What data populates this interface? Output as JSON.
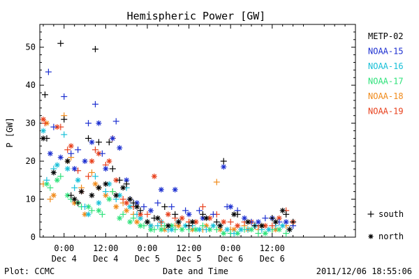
{
  "chart_data": {
    "type": "scatter",
    "title": "Hemispheric Power [GW]",
    "xlabel": "Date and Time",
    "ylabel": "P [GW]",
    "ylim": [
      0,
      56
    ],
    "xlim": [
      -7,
      84
    ],
    "x_unit": "hours from 2011-12-04 00:00 UT",
    "yticks": [
      0,
      10,
      20,
      30,
      40,
      50
    ],
    "xticks": [
      {
        "x": 0,
        "line1": "0:00",
        "line2": "Dec 4"
      },
      {
        "x": 12,
        "line1": "12:00",
        "line2": "Dec 4"
      },
      {
        "x": 24,
        "line1": "0:00",
        "line2": "Dec 5"
      },
      {
        "x": 36,
        "line1": "12:00",
        "line2": "Dec 5"
      },
      {
        "x": 48,
        "line1": "0:00",
        "line2": "Dec 6"
      },
      {
        "x": 60,
        "line1": "12:00",
        "line2": "Dec 6"
      }
    ],
    "legend_position": "right",
    "series": [
      {
        "name": "METP-02",
        "color": "#000000",
        "south": [
          [
            -5.5,
            37.5
          ],
          [
            -5,
            26
          ],
          [
            -1,
            51
          ],
          [
            0,
            31
          ],
          [
            2,
            11
          ],
          [
            4,
            9
          ],
          [
            7,
            26
          ],
          [
            9,
            49.5
          ],
          [
            10,
            25
          ],
          [
            13,
            25
          ],
          [
            14,
            18
          ],
          [
            16,
            15
          ],
          [
            18,
            14
          ],
          [
            20,
            9
          ],
          [
            22,
            7
          ],
          [
            26,
            5
          ],
          [
            29,
            8
          ],
          [
            32,
            6
          ],
          [
            36,
            3
          ],
          [
            40,
            6
          ],
          [
            44,
            4
          ],
          [
            46,
            20
          ],
          [
            50,
            6
          ],
          [
            55,
            3
          ],
          [
            60,
            5
          ],
          [
            64,
            6
          ],
          [
            66,
            4
          ]
        ],
        "north": [
          [
            -6,
            26
          ],
          [
            -3,
            17
          ],
          [
            1,
            20
          ],
          [
            3,
            10
          ],
          [
            5,
            12
          ],
          [
            8,
            11
          ],
          [
            10,
            13
          ],
          [
            12,
            14
          ],
          [
            15,
            11
          ],
          [
            17,
            13
          ],
          [
            19,
            10
          ],
          [
            21,
            8
          ],
          [
            24,
            4
          ],
          [
            27,
            5
          ],
          [
            30,
            3
          ],
          [
            33,
            4
          ],
          [
            37,
            4
          ],
          [
            41,
            5
          ],
          [
            45,
            3
          ],
          [
            49,
            6
          ],
          [
            53,
            4
          ],
          [
            57,
            3
          ],
          [
            61,
            4
          ],
          [
            63,
            7
          ],
          [
            65,
            2
          ]
        ]
      },
      {
        "name": "NOAA-15",
        "color": "#1c2fd0",
        "south": [
          [
            -4.5,
            43.5
          ],
          [
            -3,
            29
          ],
          [
            0,
            37
          ],
          [
            2,
            22
          ],
          [
            4,
            23
          ],
          [
            7,
            30
          ],
          [
            9,
            35
          ],
          [
            11,
            22
          ],
          [
            15,
            30.5
          ],
          [
            19,
            10
          ],
          [
            23,
            8
          ],
          [
            27,
            9
          ],
          [
            31,
            8
          ],
          [
            35,
            7
          ],
          [
            39,
            7
          ],
          [
            43,
            6
          ],
          [
            47,
            8
          ],
          [
            50,
            7
          ],
          [
            54,
            4
          ],
          [
            58,
            5
          ],
          [
            62,
            4
          ],
          [
            66,
            3
          ]
        ],
        "north": [
          [
            -4,
            22
          ],
          [
            -1,
            21
          ],
          [
            3,
            18
          ],
          [
            6,
            20
          ],
          [
            8,
            25
          ],
          [
            10,
            30
          ],
          [
            12,
            18
          ],
          [
            14,
            26
          ],
          [
            16,
            23.5
          ],
          [
            18,
            15
          ],
          [
            21,
            9
          ],
          [
            25,
            7
          ],
          [
            28,
            12.5
          ],
          [
            32,
            12.5
          ],
          [
            36,
            6
          ],
          [
            40,
            5
          ],
          [
            46,
            18.5
          ],
          [
            48,
            8
          ],
          [
            52,
            5
          ],
          [
            56,
            4
          ],
          [
            60,
            5
          ],
          [
            64,
            4
          ]
        ]
      },
      {
        "name": "NOAA-16",
        "color": "#18c0d8",
        "south": [
          [
            -5,
            15
          ],
          [
            -3,
            18
          ],
          [
            0,
            27
          ],
          [
            3,
            13
          ],
          [
            6,
            8
          ],
          [
            9,
            16
          ],
          [
            12,
            12
          ],
          [
            15,
            10
          ],
          [
            18,
            13
          ],
          [
            21,
            6
          ],
          [
            24,
            4
          ],
          [
            27,
            3
          ],
          [
            30,
            2
          ],
          [
            33,
            4
          ],
          [
            37,
            3
          ],
          [
            41,
            2
          ],
          [
            45,
            3
          ],
          [
            49,
            1
          ],
          [
            53,
            2
          ],
          [
            57,
            2
          ],
          [
            61,
            3
          ],
          [
            65,
            2
          ]
        ],
        "north": [
          [
            -6,
            28
          ],
          [
            -2,
            19
          ],
          [
            1,
            18
          ],
          [
            4,
            15
          ],
          [
            7,
            6
          ],
          [
            10,
            9
          ],
          [
            13,
            14
          ],
          [
            16,
            11
          ],
          [
            19,
            8
          ],
          [
            22,
            5
          ],
          [
            25,
            3
          ],
          [
            28,
            4
          ],
          [
            31,
            2
          ],
          [
            35,
            3
          ],
          [
            39,
            2
          ],
          [
            43,
            3
          ],
          [
            47,
            2
          ],
          [
            51,
            2
          ],
          [
            55,
            3
          ],
          [
            59,
            2
          ],
          [
            63,
            3
          ]
        ]
      },
      {
        "name": "NOAA-17",
        "color": "#2ee27a",
        "south": [
          [
            -4,
            13
          ],
          [
            -1,
            16
          ],
          [
            2,
            10
          ],
          [
            5,
            8
          ],
          [
            8,
            7
          ],
          [
            11,
            6
          ],
          [
            14,
            12
          ],
          [
            17,
            6
          ],
          [
            20,
            5
          ],
          [
            23,
            3
          ],
          [
            26,
            2
          ],
          [
            29,
            3
          ],
          [
            32,
            2
          ],
          [
            36,
            2
          ],
          [
            40,
            3
          ],
          [
            44,
            2
          ],
          [
            48,
            1
          ],
          [
            52,
            2
          ],
          [
            56,
            1
          ],
          [
            60,
            2
          ],
          [
            64,
            1
          ]
        ],
        "north": [
          [
            -5,
            14
          ],
          [
            -2,
            15
          ],
          [
            1,
            11
          ],
          [
            4,
            9
          ],
          [
            7,
            8
          ],
          [
            10,
            7
          ],
          [
            13,
            10
          ],
          [
            16,
            5
          ],
          [
            19,
            4
          ],
          [
            22,
            3
          ],
          [
            25,
            2
          ],
          [
            28,
            2
          ],
          [
            31,
            3
          ],
          [
            34,
            2
          ],
          [
            38,
            2
          ],
          [
            42,
            2
          ],
          [
            46,
            1
          ],
          [
            50,
            1
          ],
          [
            54,
            2
          ],
          [
            58,
            1
          ],
          [
            62,
            2
          ]
        ]
      },
      {
        "name": "NOAA-18",
        "color": "#f08a1a",
        "south": [
          [
            -6,
            14
          ],
          [
            -4,
            10
          ],
          [
            0,
            32
          ],
          [
            2,
            21
          ],
          [
            5,
            13
          ],
          [
            8,
            17
          ],
          [
            10,
            13
          ],
          [
            14,
            12
          ],
          [
            17,
            9
          ],
          [
            20,
            6
          ],
          [
            24,
            4
          ],
          [
            28,
            3
          ],
          [
            32,
            3
          ],
          [
            36,
            4
          ],
          [
            40,
            2
          ],
          [
            44,
            14.5
          ],
          [
            48,
            2
          ],
          [
            52,
            3
          ],
          [
            56,
            2
          ],
          [
            60,
            2
          ],
          [
            64,
            3
          ]
        ],
        "north": [
          [
            -5,
            30
          ],
          [
            -3,
            11
          ],
          [
            1,
            20
          ],
          [
            3,
            9
          ],
          [
            6,
            6
          ],
          [
            9,
            14
          ],
          [
            12,
            11
          ],
          [
            15,
            8
          ],
          [
            18,
            7
          ],
          [
            21,
            4
          ],
          [
            25,
            3
          ],
          [
            29,
            2
          ],
          [
            33,
            3
          ],
          [
            37,
            2
          ],
          [
            41,
            3
          ],
          [
            45,
            2
          ],
          [
            49,
            2
          ],
          [
            53,
            2
          ],
          [
            57,
            3
          ],
          [
            61,
            2
          ]
        ]
      },
      {
        "name": "NOAA-19",
        "color": "#e8401c",
        "south": [
          [
            -5.5,
            30
          ],
          [
            -1,
            29
          ],
          [
            1,
            23
          ],
          [
            4,
            17.5
          ],
          [
            7,
            16
          ],
          [
            9,
            23
          ],
          [
            12,
            19
          ],
          [
            14,
            26
          ],
          [
            17,
            10
          ],
          [
            20,
            8
          ],
          [
            24,
            6
          ],
          [
            28,
            4
          ],
          [
            32,
            5
          ],
          [
            36,
            4
          ],
          [
            40,
            8
          ],
          [
            44,
            6
          ],
          [
            48,
            4
          ],
          [
            52,
            4
          ],
          [
            56,
            3
          ],
          [
            60,
            3
          ],
          [
            64,
            7
          ]
        ],
        "north": [
          [
            -6,
            31
          ],
          [
            -2,
            29
          ],
          [
            2,
            24
          ],
          [
            5,
            12
          ],
          [
            8,
            20
          ],
          [
            10,
            22
          ],
          [
            13,
            20
          ],
          [
            15,
            15
          ],
          [
            18,
            9
          ],
          [
            22,
            6
          ],
          [
            26,
            16
          ],
          [
            30,
            6
          ],
          [
            34,
            5
          ],
          [
            38,
            4
          ],
          [
            42,
            5
          ],
          [
            46,
            4
          ],
          [
            50,
            3
          ],
          [
            54,
            4
          ],
          [
            58,
            3
          ],
          [
            62,
            5
          ],
          [
            66,
            4
          ]
        ]
      }
    ],
    "marker_legend": {
      "south_label": "south",
      "north_label": "north"
    }
  },
  "footer": {
    "plot_credit": "Plot: CCMC",
    "timestamp": "2011/12/06 18:55:06"
  }
}
